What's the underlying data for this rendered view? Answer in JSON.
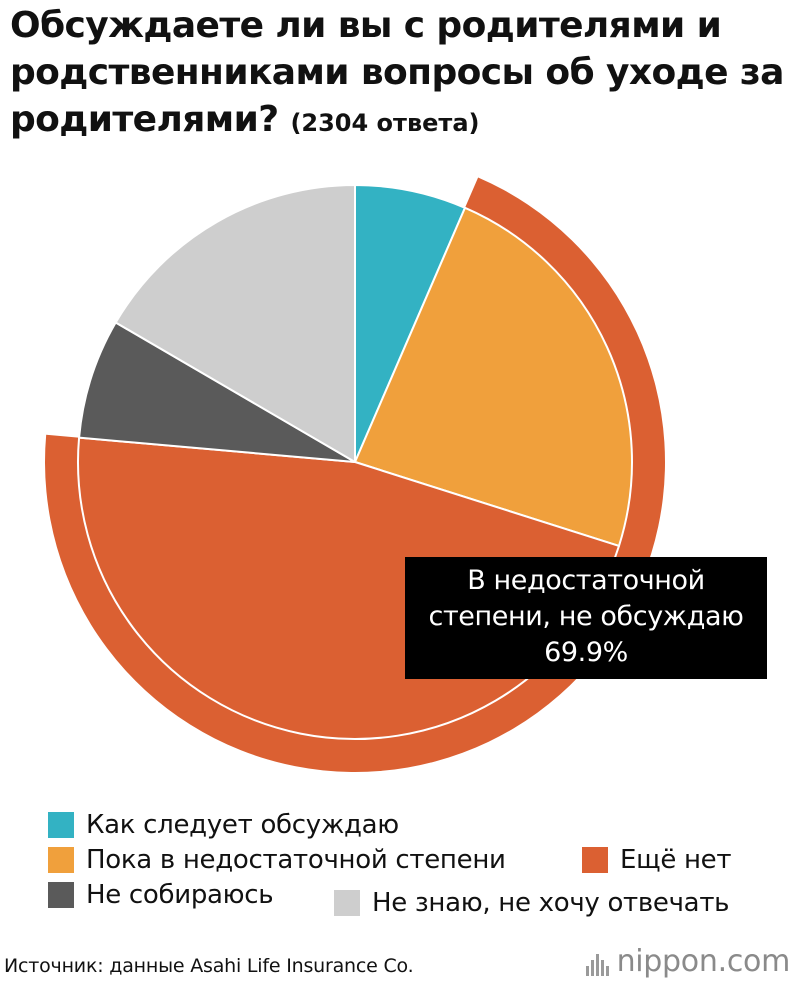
{
  "title": {
    "main": "Обсуждаете ли вы с родителями и родственниками вопросы об уходе за родителями?",
    "count": "(2304 ответа)"
  },
  "chart_data": {
    "type": "pie",
    "start_angle_deg": 0,
    "direction": "clockwise",
    "slices": [
      {
        "key": "a",
        "label": "Как следует обсуждаю",
        "value": 6.5,
        "color": "#33b2c3"
      },
      {
        "key": "b",
        "label": "Пока в недостаточной степени",
        "value": 23.4,
        "color": "#f0a03c"
      },
      {
        "key": "c",
        "label": "Ещё нет",
        "value": 46.5,
        "color": "#db6032"
      },
      {
        "key": "d",
        "label": "Не собираюсь",
        "value": 7.0,
        "color": "#5a5a5a"
      },
      {
        "key": "e",
        "label": "Не знаю, не хочу отвечать",
        "value": 16.6,
        "color": "#cecece"
      }
    ],
    "group_ring": {
      "slices": [
        "b",
        "c"
      ],
      "color": "#db6032",
      "label_line1": "В недостаточной",
      "label_line2": "степени, не обсуждаю",
      "value_label": "69.9%",
      "callout_bg": "#000000"
    }
  },
  "legend": [
    {
      "label": "Как следует обсуждаю",
      "color": "#33b2c3"
    },
    {
      "label": "Пока в недостаточной степени",
      "color": "#f0a03c"
    },
    {
      "label": "Ещё нет",
      "color": "#db6032"
    },
    {
      "label": "Не собираюсь",
      "color": "#5a5a5a"
    },
    {
      "label": "Не знаю, не хочу отвечать",
      "color": "#cecece"
    }
  ],
  "footer": {
    "source": "Источник: данные Asahi Life Insurance Co.",
    "logo_main": "nippon",
    "logo_suffix": ".com",
    "logo_icon": "nippon-bars-icon"
  }
}
